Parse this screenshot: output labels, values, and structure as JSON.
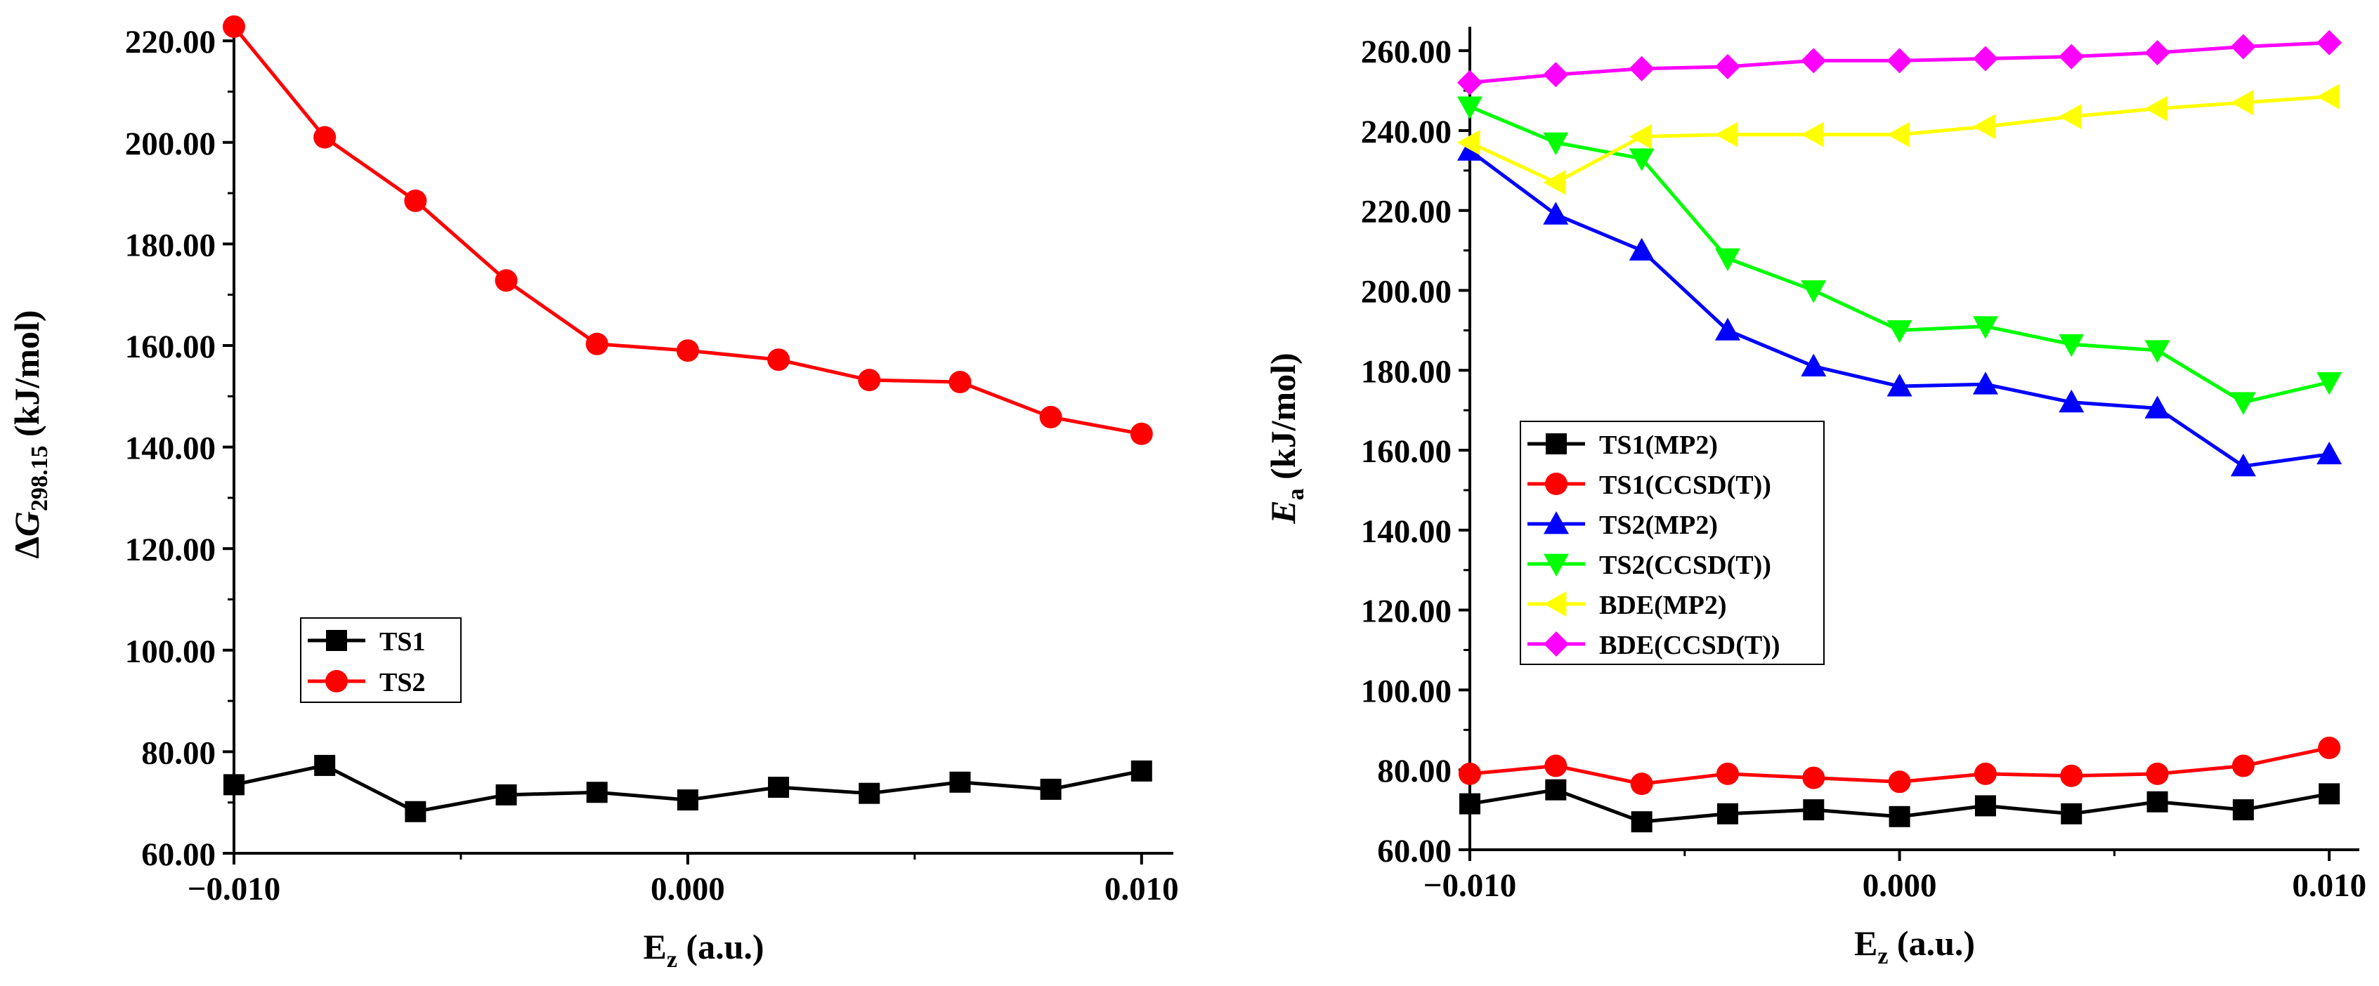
{
  "chart_data": [
    {
      "type": "line",
      "title": "",
      "xlabel": {
        "main": "E",
        "sub": "z",
        "rest": " (a.u.)"
      },
      "ylabel": {
        "prefix": "ΔG",
        "sub": "298.15",
        "rest": " (kJ/mol)"
      },
      "xlim": [
        -0.01,
        0.0107
      ],
      "ylim": [
        60,
        225
      ],
      "x": [
        -0.01,
        -0.008,
        -0.006,
        -0.004,
        -0.002,
        0.0,
        0.002,
        0.004,
        0.006,
        0.008,
        0.01
      ],
      "xticks": [
        -0.01,
        0.0,
        0.01
      ],
      "xtick_labels": [
        "−0.010",
        "0.000",
        "0.010"
      ],
      "yticks": [
        60,
        80,
        100,
        120,
        140,
        160,
        180,
        200,
        220
      ],
      "ytick_labels": [
        "60.00",
        "80.00",
        "100.00",
        "120.00",
        "140.00",
        "160.00",
        "180.00",
        "200.00",
        "220.00"
      ],
      "legend_position": "lower-left",
      "series": [
        {
          "name": "TS1",
          "color": "#000000",
          "marker": "square",
          "values": [
            73.5,
            77.3,
            68.2,
            71.5,
            72.0,
            70.5,
            73.0,
            71.8,
            74.0,
            72.6,
            76.2
          ]
        },
        {
          "name": "TS2",
          "color": "#ff0000",
          "marker": "circle",
          "values": [
            222.8,
            201.0,
            188.5,
            172.8,
            160.3,
            159.0,
            157.2,
            153.2,
            152.8,
            145.9,
            142.6
          ]
        }
      ]
    },
    {
      "type": "line",
      "title": "",
      "xlabel": {
        "main": "E",
        "sub": "z",
        "rest": " (a.u.)"
      },
      "ylabel": {
        "prefix": "E",
        "sub": "a",
        "rest": " (kJ/mol)"
      },
      "xlim": [
        -0.01,
        0.0107
      ],
      "ylim": [
        60,
        266
      ],
      "x": [
        -0.01,
        -0.008,
        -0.006,
        -0.004,
        -0.002,
        0.0,
        0.002,
        0.004,
        0.006,
        0.008,
        0.01
      ],
      "xticks": [
        -0.01,
        0.0,
        0.01
      ],
      "xtick_labels": [
        "−0.010",
        "0.000",
        "0.010"
      ],
      "yticks": [
        60,
        80,
        100,
        120,
        140,
        160,
        180,
        200,
        220,
        240,
        260
      ],
      "ytick_labels": [
        "60.00",
        "80.00",
        "100.00",
        "120.00",
        "140.00",
        "160.00",
        "180.00",
        "200.00",
        "220.00",
        "240.00",
        "260.00"
      ],
      "legend_position": "center-left",
      "series": [
        {
          "name": "TS1(MP2)",
          "color": "#000000",
          "marker": "square",
          "values": [
            71.5,
            75.0,
            67.0,
            69.0,
            70.0,
            68.3,
            71.0,
            69.0,
            72.0,
            70.0,
            74.0
          ]
        },
        {
          "name": "TS1(CCSD(T))",
          "color": "#ff0000",
          "marker": "circle",
          "values": [
            79.0,
            81.0,
            76.5,
            79.0,
            78.0,
            77.0,
            79.0,
            78.5,
            79.0,
            81.0,
            85.5
          ]
        },
        {
          "name": "TS2(MP2)",
          "color": "#0000ff",
          "marker": "triangle-up",
          "values": [
            235.0,
            219.0,
            210.0,
            190.0,
            181.0,
            176.0,
            176.5,
            172.0,
            170.5,
            156.0,
            159.0
          ]
        },
        {
          "name": "TS2(CCSD(T))",
          "color": "#00ff00",
          "marker": "triangle-down",
          "values": [
            246.0,
            237.0,
            233.0,
            208.0,
            200.0,
            190.0,
            191.0,
            186.5,
            185.0,
            172.0,
            177.0
          ]
        },
        {
          "name": "BDE(MP2)",
          "color": "#ffff00",
          "marker": "triangle-left",
          "values": [
            237.0,
            227.0,
            238.5,
            239.0,
            239.0,
            239.0,
            241.0,
            243.5,
            245.5,
            247.0,
            248.5
          ]
        },
        {
          "name": "BDE(CCSD(T))",
          "color": "#ff00ff",
          "marker": "diamond",
          "values": [
            252.0,
            254.0,
            255.5,
            256.0,
            257.5,
            257.5,
            258.0,
            258.5,
            259.5,
            261.0,
            262.0
          ]
        }
      ]
    }
  ]
}
